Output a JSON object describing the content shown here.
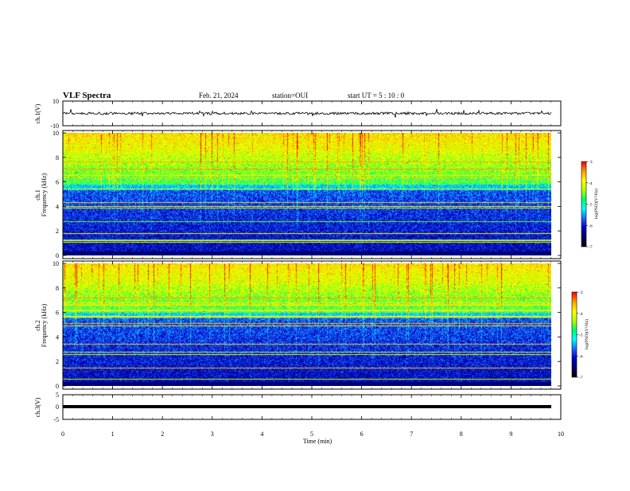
{
  "header": {
    "title": "VLF Spectra",
    "date": "Feb. 21, 2024",
    "station": "station=OUI",
    "start": "start  UT  =   5 : 10 : 0"
  },
  "colors": {
    "low": "#00007f",
    "mid": "#00ff7f",
    "high": "#ff0000",
    "colormap": [
      "#000000",
      "#00006b",
      "#0000c8",
      "#1f6bff",
      "#00ffff",
      "#00ff66",
      "#b8ff00",
      "#ffff00",
      "#ffa000",
      "#ff0000",
      "#ffffff"
    ]
  },
  "chart_data": [
    {
      "type": "line",
      "ylabel": "ch.1(V)",
      "ylim": [
        -10,
        10
      ],
      "yticks": [
        "10",
        "-10"
      ],
      "xlim": [
        0,
        10
      ],
      "series": [
        {
          "values_note": "",
          "baseline": 0
        }
      ]
    },
    {
      "type": "heatmap",
      "ylabel_line1": "ch.1",
      "ylabel_line2": "Frequency (kHz)",
      "ylim": [
        0,
        10
      ],
      "yticks": [
        "0",
        "2",
        "4",
        "6",
        "8",
        "10"
      ],
      "xlim": [
        0,
        10
      ],
      "colorbar": {
        "label": "log(PSD)(V²/Hz)",
        "range": [
          -7,
          -3
        ],
        "ticks": [
          "-3",
          "-4",
          "-5",
          "-6",
          "-7"
        ]
      }
    },
    {
      "type": "heatmap",
      "ylabel_line1": "ch.2",
      "ylabel_line2": "Frequency (kHz)",
      "ylim": [
        0,
        10
      ],
      "yticks": [
        "0",
        "2",
        "4",
        "6",
        "8",
        "10"
      ],
      "xlim": [
        0,
        10
      ],
      "colorbar": {
        "label": "log(PSD)(V²/Hz)",
        "range": [
          -7,
          -3
        ],
        "ticks": [
          "-3",
          "-4",
          "-5",
          "-6",
          "-7"
        ]
      }
    },
    {
      "type": "line",
      "ylabel": "ch.3(V)",
      "ylim": [
        -5,
        5
      ],
      "yticks": [
        "5",
        "0",
        "-5"
      ],
      "xlim": [
        0,
        10
      ],
      "series": [
        {
          "baseline": -1
        }
      ]
    }
  ],
  "xaxis": {
    "label": "Time  (min)",
    "ticks": [
      "0",
      "1",
      "2",
      "3",
      "4",
      "5",
      "6",
      "7",
      "8",
      "9",
      "10"
    ]
  }
}
